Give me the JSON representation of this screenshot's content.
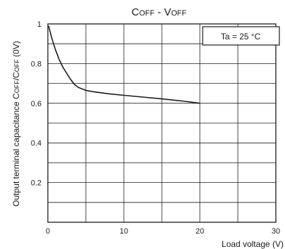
{
  "chart_data": {
    "type": "line",
    "title": {
      "main_a": "C",
      "main_a_sc": "OFF",
      "sep": " - ",
      "main_b": "V",
      "main_b_sc": "OFF"
    },
    "xlabel": "Load voltage (V)",
    "ylabel": {
      "prefix": "Output terminal capacitance C",
      "sc1": "OFF",
      "mid": "/C",
      "sc2": "OFF",
      "suffix": " (0V)"
    },
    "annotation": "Ta = 25 °C",
    "xlim": [
      0,
      30
    ],
    "ylim": [
      0.0,
      1.0
    ],
    "x_ticks": [
      "0",
      "10",
      "20",
      "30"
    ],
    "y_ticks": [
      "0.2",
      "0.4",
      "0.6",
      "0.8",
      "1"
    ],
    "grid": true,
    "series": [
      {
        "x": [
          0.1,
          0.5,
          1.0,
          1.5,
          2.0,
          2.5,
          3.0,
          3.5,
          4.0,
          5.0,
          6.0,
          8.0,
          10.0,
          12.0,
          15.0,
          18.0,
          20.0
        ],
        "y": [
          0.99,
          0.93,
          0.87,
          0.82,
          0.78,
          0.75,
          0.72,
          0.695,
          0.68,
          0.665,
          0.658,
          0.648,
          0.64,
          0.633,
          0.622,
          0.61,
          0.6
        ]
      }
    ],
    "color": "#1a1a1a"
  }
}
